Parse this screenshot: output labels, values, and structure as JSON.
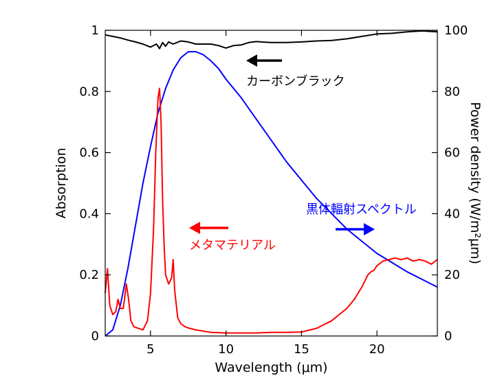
{
  "chart_data": {
    "type": "line",
    "xlabel": "Wavelength (μm)",
    "ylabel": "Absorption",
    "y2label": "Power density (W/m²μm)",
    "xlim": [
      2,
      24
    ],
    "ylim": [
      0,
      1
    ],
    "y2lim": [
      0,
      100
    ],
    "xticks": [
      "5",
      "10",
      "15",
      "20"
    ],
    "yticks": [
      "0",
      "0.2",
      "0.4",
      "0.6",
      "0.8",
      "1"
    ],
    "y2ticks": [
      "0",
      "20",
      "40",
      "60",
      "80",
      "100"
    ],
    "grid": false,
    "legend": "none",
    "series": [
      {
        "name": "カーボンブラック",
        "axis": "left",
        "color": "#000000",
        "x": [
          2,
          2.5,
          3,
          3.5,
          4,
          4.5,
          5,
          5.4,
          5.6,
          5.8,
          6,
          6.2,
          6.5,
          7,
          7.5,
          8,
          8.5,
          9,
          9.5,
          10,
          10.5,
          11,
          11.5,
          12,
          13,
          14,
          15,
          16,
          17,
          18,
          19,
          20,
          21,
          22,
          23,
          24
        ],
        "y": [
          0.985,
          0.98,
          0.975,
          0.968,
          0.962,
          0.955,
          0.945,
          0.955,
          0.94,
          0.96,
          0.948,
          0.962,
          0.955,
          0.965,
          0.962,
          0.955,
          0.955,
          0.955,
          0.95,
          0.942,
          0.95,
          0.952,
          0.96,
          0.963,
          0.96,
          0.96,
          0.962,
          0.965,
          0.967,
          0.972,
          0.98,
          0.988,
          0.99,
          0.995,
          0.998,
          0.995
        ]
      },
      {
        "name": "黒体輻射スペクトル",
        "axis": "right",
        "color": "#0000ff",
        "x": [
          2,
          2.5,
          3,
          3.5,
          4,
          4.5,
          5,
          5.5,
          6,
          6.5,
          7,
          7.5,
          8,
          8.5,
          9,
          9.5,
          10,
          11,
          12,
          13,
          14,
          15,
          16,
          17,
          18,
          19,
          20,
          21,
          22,
          23,
          24
        ],
        "y": [
          0,
          2,
          10,
          22,
          36,
          50,
          62,
          73,
          81,
          87,
          91,
          93,
          93,
          92,
          90,
          87.5,
          84,
          78,
          71,
          64,
          57,
          51,
          45,
          40,
          35,
          31,
          27,
          24,
          21,
          18.5,
          16
        ]
      },
      {
        "name": "メタマテリアル",
        "axis": "left",
        "color": "#ff0000",
        "x": [
          2,
          2.15,
          2.3,
          2.5,
          2.7,
          2.85,
          3.0,
          3.2,
          3.4,
          3.55,
          3.7,
          3.9,
          4.2,
          4.5,
          4.8,
          5.0,
          5.2,
          5.35,
          5.5,
          5.6,
          5.7,
          5.8,
          5.9,
          6.0,
          6.2,
          6.4,
          6.5,
          6.6,
          6.8,
          7.0,
          7.3,
          7.6,
          8,
          9,
          10,
          11,
          12,
          13,
          14,
          15,
          16,
          17,
          17.5,
          18,
          18.5,
          19,
          19.2,
          19.4,
          19.6,
          19.8,
          20,
          20.4,
          20.8,
          21.2,
          21.6,
          22,
          22.4,
          22.8,
          23.2,
          23.6,
          24
        ],
        "y": [
          0.14,
          0.22,
          0.1,
          0.07,
          0.08,
          0.12,
          0.09,
          0.09,
          0.17,
          0.12,
          0.05,
          0.03,
          0.025,
          0.02,
          0.05,
          0.14,
          0.35,
          0.6,
          0.78,
          0.81,
          0.7,
          0.45,
          0.3,
          0.2,
          0.17,
          0.19,
          0.25,
          0.15,
          0.06,
          0.04,
          0.03,
          0.025,
          0.02,
          0.012,
          0.01,
          0.01,
          0.01,
          0.012,
          0.012,
          0.013,
          0.025,
          0.05,
          0.07,
          0.09,
          0.12,
          0.16,
          0.18,
          0.2,
          0.21,
          0.215,
          0.23,
          0.245,
          0.25,
          0.255,
          0.25,
          0.255,
          0.245,
          0.25,
          0.245,
          0.235,
          0.25
        ]
      }
    ],
    "annotations": [
      {
        "text": "カーボンブラック",
        "color": "#000000",
        "arrow": "left"
      },
      {
        "text": "黒体輻射スペクトル",
        "color": "#0000ff",
        "arrow": "right"
      },
      {
        "text": "メタマテリアル",
        "color": "#ff0000",
        "arrow": "left"
      }
    ]
  }
}
